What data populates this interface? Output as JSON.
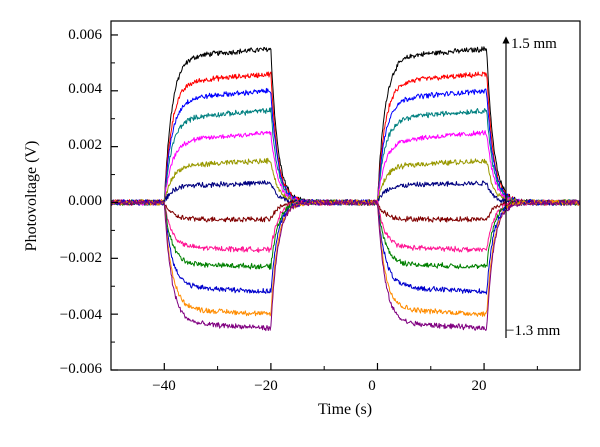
{
  "chart_data": {
    "type": "line",
    "title": "",
    "xlabel": "Time (s)",
    "ylabel": "Photovoltage (V)",
    "xlim": [
      -50,
      38
    ],
    "ylim": [
      -0.006,
      0.0065
    ],
    "xticks": [
      -40,
      -20,
      0,
      20
    ],
    "xtick_labels": [
      "−40",
      "−20",
      "0",
      "20"
    ],
    "yticks": [
      -0.006,
      -0.004,
      -0.002,
      0.0,
      0.002,
      0.004,
      0.006
    ],
    "ytick_labels": [
      "−0.006",
      "−0.004",
      "−0.002",
      "0.000",
      "0.002",
      "0.004",
      "0.006"
    ],
    "grid": false,
    "legend": null,
    "pulses": [
      {
        "on": -40,
        "off": -20
      },
      {
        "on": 0,
        "off": 20.5
      }
    ],
    "series": [
      {
        "color": "#000000",
        "plateau": [
          0.0052,
          0.0055
        ]
      },
      {
        "color": "#ff0000",
        "plateau": [
          0.0043,
          0.0046
        ]
      },
      {
        "color": "#0000ff",
        "plateau": [
          0.0037,
          0.004
        ]
      },
      {
        "color": "#008080",
        "plateau": [
          0.003,
          0.0033
        ]
      },
      {
        "color": "#ff00ff",
        "plateau": [
          0.0022,
          0.0025
        ]
      },
      {
        "color": "#999900",
        "plateau": [
          0.0013,
          0.0015
        ]
      },
      {
        "color": "#000080",
        "plateau": [
          0.0006,
          0.0007
        ]
      },
      {
        "color": "#800000",
        "plateau": [
          -0.0006,
          -0.0006
        ]
      },
      {
        "color": "#ff1493",
        "plateau": [
          -0.0016,
          -0.0017
        ]
      },
      {
        "color": "#008000",
        "plateau": [
          -0.0022,
          -0.0023
        ]
      },
      {
        "color": "#0000cd",
        "plateau": [
          -0.003,
          -0.0032
        ]
      },
      {
        "color": "#ff8c00",
        "plateau": [
          -0.0038,
          -0.004
        ]
      },
      {
        "color": "#800080",
        "plateau": [
          -0.0043,
          -0.0045
        ]
      }
    ],
    "annotations": [
      {
        "text": "1.5 mm"
      },
      {
        "text": "−1.3 mm"
      }
    ]
  }
}
